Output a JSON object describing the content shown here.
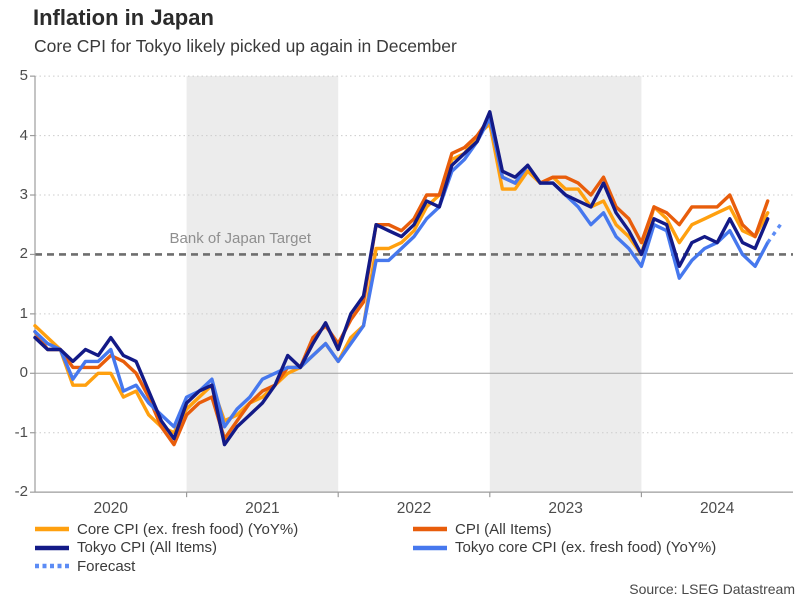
{
  "header": {
    "title": "Inflation in Japan",
    "subtitle": "Core CPI for Tokyo likely picked up again in December"
  },
  "source": "Source: LSEG Datastream",
  "colors": {
    "background": "#ffffff",
    "shaded_band": "#ececec",
    "gridline": "#cccccc",
    "zero_line": "#a0a0a0",
    "axis": "#9c9c9c",
    "target_line": "#6e6e6e",
    "title_text": "#2b2b2b",
    "tick_text": "#4c4c4c",
    "target_label_text": "#8f8f8f"
  },
  "chart_data": {
    "type": "line",
    "title": "Inflation in Japan",
    "subtitle": "Core CPI for Tokyo likely picked up again in December",
    "x_unit": "month",
    "x_start": "2020-01",
    "x_end": "2024-12",
    "year_labels": [
      "2020",
      "2021",
      "2022",
      "2023",
      "2024"
    ],
    "shaded_years": [
      "2021",
      "2023"
    ],
    "y_ticks": [
      5,
      4,
      3,
      2,
      1,
      0,
      -1,
      -2
    ],
    "ylim": [
      -2,
      5
    ],
    "grid": "dotted-horizontal",
    "legend_position": "bottom",
    "target_line": {
      "value": 2,
      "label": "Bank of Japan Target"
    },
    "series": [
      {
        "name": "Core CPI (ex. fresh food) (YoY%)",
        "color": "#FFA00F",
        "style": "solid",
        "start_month": 0,
        "values": [
          0.8,
          0.6,
          0.4,
          -0.2,
          -0.2,
          0.0,
          0.0,
          -0.4,
          -0.3,
          -0.7,
          -0.9,
          -1.0,
          -0.6,
          -0.4,
          -0.2,
          -0.8,
          -0.7,
          -0.5,
          -0.4,
          -0.2,
          0.0,
          0.1,
          0.3,
          0.5,
          0.2,
          0.6,
          0.8,
          2.1,
          2.1,
          2.2,
          2.4,
          2.8,
          3.0,
          3.6,
          3.7,
          4.0,
          4.2,
          3.1,
          3.1,
          3.4,
          3.2,
          3.3,
          3.1,
          3.1,
          2.8,
          2.9,
          2.5,
          2.3,
          2.0,
          2.8,
          2.6,
          2.2,
          2.5,
          2.6,
          2.7,
          2.8,
          2.4,
          2.3,
          2.7
        ]
      },
      {
        "name": "CPI (All Items)",
        "color": "#E85D0B",
        "style": "solid",
        "start_month": 0,
        "values": [
          0.7,
          0.4,
          0.4,
          0.1,
          0.1,
          0.1,
          0.3,
          0.2,
          0.0,
          -0.4,
          -0.9,
          -1.2,
          -0.7,
          -0.5,
          -0.4,
          -1.1,
          -0.8,
          -0.5,
          -0.3,
          -0.2,
          0.1,
          0.1,
          0.6,
          0.8,
          0.5,
          0.9,
          1.2,
          2.5,
          2.5,
          2.4,
          2.6,
          3.0,
          3.0,
          3.7,
          3.8,
          4.0,
          4.3,
          3.3,
          3.2,
          3.5,
          3.2,
          3.3,
          3.3,
          3.2,
          3.0,
          3.3,
          2.8,
          2.6,
          2.2,
          2.8,
          2.7,
          2.5,
          2.8,
          2.8,
          2.8,
          3.0,
          2.5,
          2.3,
          2.9
        ]
      },
      {
        "name": "Tokyo core CPI (ex. fresh food) (YoY%)",
        "color": "#4678EE",
        "style": "solid",
        "start_month": 0,
        "values": [
          0.7,
          0.5,
          0.4,
          -0.1,
          0.2,
          0.2,
          0.4,
          -0.3,
          -0.2,
          -0.5,
          -0.7,
          -0.9,
          -0.4,
          -0.3,
          -0.1,
          -0.9,
          -0.6,
          -0.4,
          -0.1,
          0.0,
          0.1,
          0.1,
          0.3,
          0.5,
          0.2,
          0.5,
          0.8,
          1.9,
          1.9,
          2.1,
          2.3,
          2.6,
          2.8,
          3.4,
          3.6,
          3.9,
          4.3,
          3.3,
          3.2,
          3.5,
          3.2,
          3.2,
          3.0,
          2.8,
          2.5,
          2.7,
          2.3,
          2.1,
          1.8,
          2.5,
          2.4,
          1.6,
          1.9,
          2.1,
          2.2,
          2.4,
          2.0,
          1.8,
          2.2
        ]
      },
      {
        "name": "Tokyo CPI (All Items)",
        "color": "#131A87",
        "style": "solid",
        "start_month": 0,
        "values": [
          0.6,
          0.4,
          0.4,
          0.2,
          0.4,
          0.3,
          0.6,
          0.3,
          0.2,
          -0.3,
          -0.8,
          -1.1,
          -0.5,
          -0.3,
          -0.2,
          -1.2,
          -0.9,
          -0.7,
          -0.5,
          -0.2,
          0.3,
          0.1,
          0.5,
          0.85,
          0.4,
          1.0,
          1.3,
          2.5,
          2.4,
          2.3,
          2.5,
          2.9,
          2.8,
          3.5,
          3.7,
          3.9,
          4.4,
          3.4,
          3.3,
          3.5,
          3.2,
          3.2,
          3.0,
          2.9,
          2.8,
          3.2,
          2.7,
          2.4,
          2.0,
          2.6,
          2.5,
          1.8,
          2.2,
          2.3,
          2.2,
          2.6,
          2.2,
          2.1,
          2.6
        ]
      },
      {
        "name": "Forecast",
        "color": "#5C8CF5",
        "style": "dotted",
        "start_month": 58,
        "values": [
          2.2,
          2.5
        ]
      }
    ],
    "legend": {
      "col1": [
        0,
        3,
        4
      ],
      "col2": [
        1,
        2
      ]
    }
  }
}
